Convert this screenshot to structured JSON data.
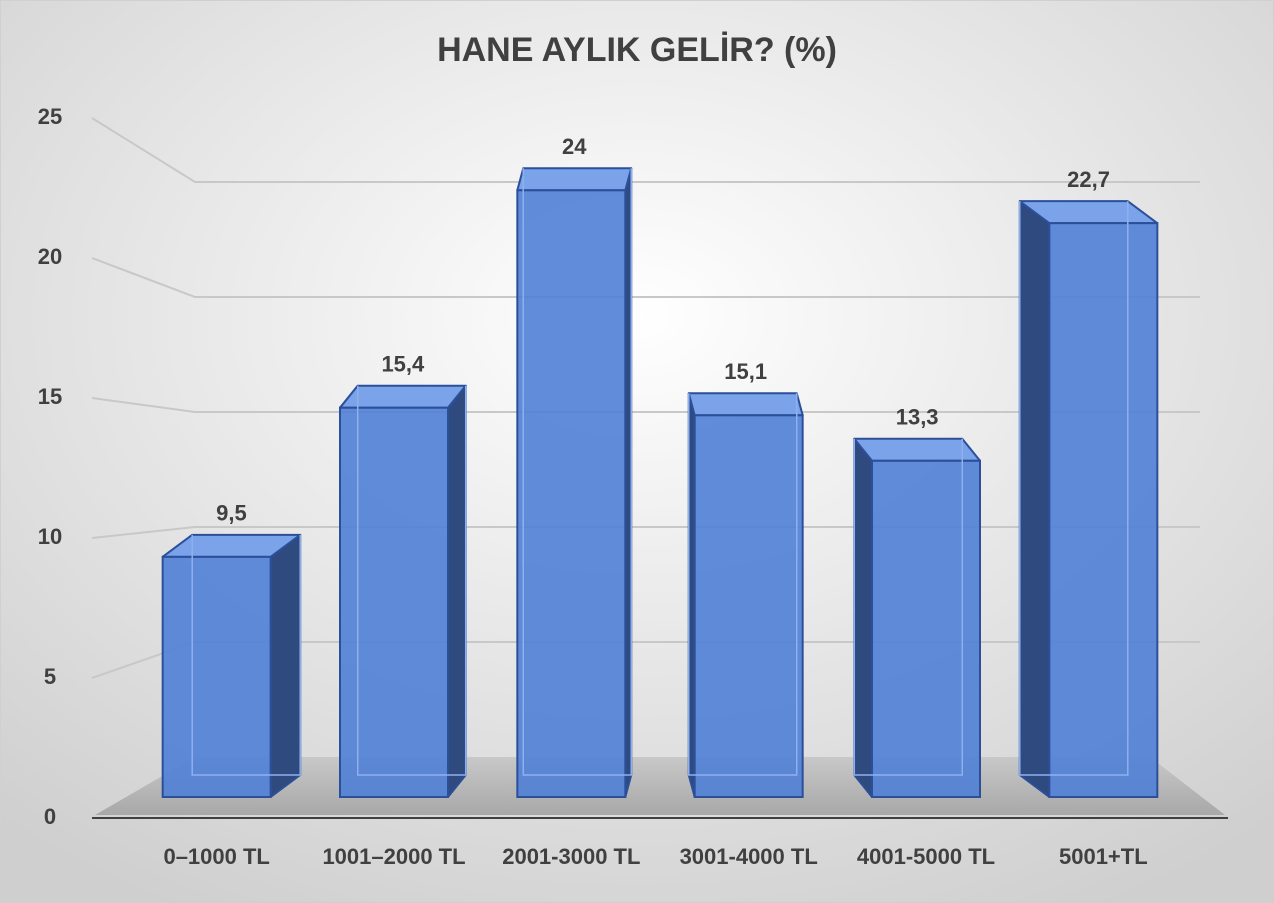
{
  "chart_data": {
    "type": "bar3d",
    "title": "HANE AYLIK GELİR? (%)",
    "categories": [
      "0–1000 TL",
      "1001–2000 TL",
      "2001-3000 TL",
      "3001-4000 TL",
      "4001-5000 TL",
      "5001+TL"
    ],
    "values": [
      9.5,
      15.4,
      24,
      15.1,
      13.3,
      22.7
    ],
    "value_labels": [
      "9,5",
      "15,4",
      "24",
      "15,1",
      "13,3",
      "22,7"
    ],
    "color": "#4f7fd6",
    "ylim": [
      0,
      25
    ],
    "yticks": [
      0,
      5,
      10,
      15,
      20,
      25
    ],
    "grid": true
  }
}
